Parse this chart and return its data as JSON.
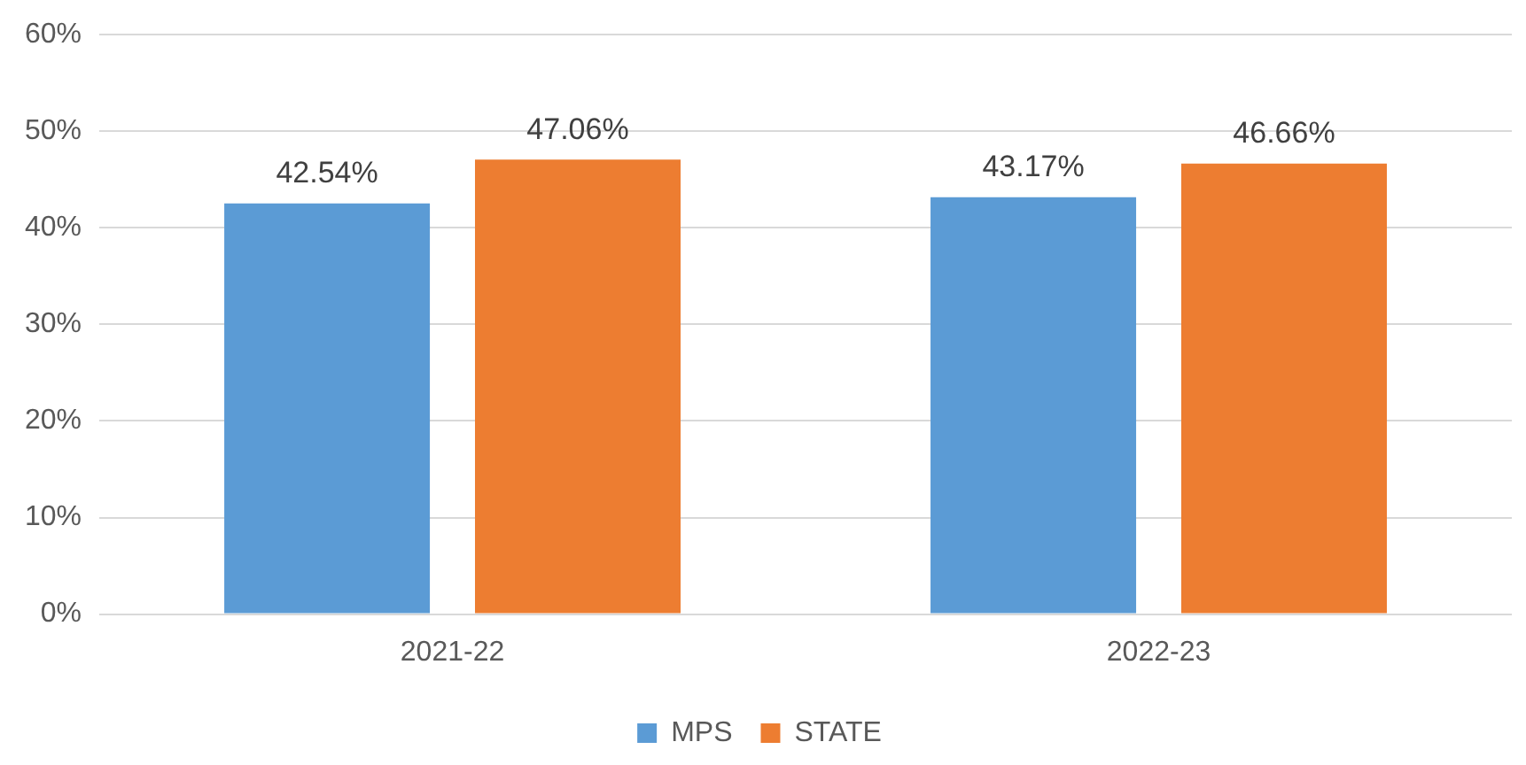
{
  "chart_data": {
    "type": "bar",
    "categories": [
      "2021-22",
      "2022-23"
    ],
    "series": [
      {
        "name": "MPS",
        "color": "#5b9bd5",
        "values": [
          42.54,
          43.17
        ],
        "value_labels": [
          "42.54%",
          "43.17%"
        ]
      },
      {
        "name": "STATE",
        "color": "#ed7d31",
        "values": [
          47.06,
          46.66
        ],
        "value_labels": [
          "47.06%",
          "46.66%"
        ]
      }
    ],
    "ylim": [
      0,
      60
    ],
    "yticks": [
      {
        "value": 0,
        "label": "0%"
      },
      {
        "value": 10,
        "label": "10%"
      },
      {
        "value": 20,
        "label": "20%"
      },
      {
        "value": 30,
        "label": "30%"
      },
      {
        "value": 40,
        "label": "40%"
      },
      {
        "value": 50,
        "label": "50%"
      },
      {
        "value": 60,
        "label": "60%"
      }
    ],
    "grid": "y",
    "legend": "bottom"
  }
}
